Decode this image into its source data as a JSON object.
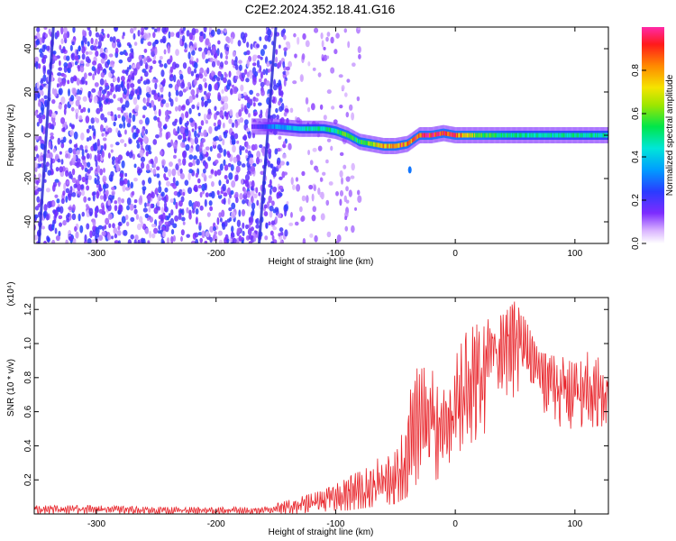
{
  "title": "C2E2.2024.352.18.41.G16",
  "colors": {
    "snr_line": "#e8242a",
    "spectrogram_background_points": "#7b2ff7",
    "frame": "#000000"
  },
  "chart_data": [
    {
      "type": "heatmap",
      "title": "C2E2.2024.352.18.41.G16",
      "xlabel": "Height of straight line (km)",
      "ylabel": "Frequency (Hz)",
      "xlim": [
        -352,
        128
      ],
      "ylim": [
        -50,
        50
      ],
      "x_ticks": [
        "-300",
        "-200",
        "-100",
        "0",
        "100"
      ],
      "x_tick_values": [
        -300,
        -200,
        -100,
        0,
        100
      ],
      "y_ticks": [
        "40",
        "20",
        "0",
        "-20",
        "-40"
      ],
      "y_tick_values": [
        40,
        20,
        0,
        -20,
        -40
      ],
      "colorbar": {
        "label": "Normalized spectral amplitude",
        "range": [
          0.0,
          1.0
        ],
        "ticks": [
          "0.0",
          "0.2",
          "0.4",
          "0.6",
          "0.8"
        ],
        "tick_values": [
          0.0,
          0.2,
          0.4,
          0.6,
          0.8
        ],
        "colormap": "hsv-rainbow (white/violet low to red/magenta high)"
      },
      "noise_region_x": [
        -352,
        -140
      ],
      "oblique_streaks": [
        {
          "x_at_bottom": -348,
          "x_at_top": -336
        },
        {
          "x_at_bottom": -164,
          "x_at_top": -150
        }
      ],
      "signal_ridge": {
        "x": [
          -170,
          -150,
          -130,
          -110,
          -100,
          -90,
          -80,
          -70,
          -60,
          -50,
          -40,
          -35,
          -30,
          -20,
          -10,
          0,
          20,
          50,
          80,
          100,
          128
        ],
        "frequency_hz": [
          4,
          4,
          3,
          3,
          2,
          0,
          -3,
          -4,
          -5,
          -5,
          -4,
          -2,
          0,
          0,
          1,
          0,
          0,
          0,
          0,
          0,
          0
        ],
        "amplitude": [
          0.15,
          0.35,
          0.45,
          0.5,
          0.55,
          0.6,
          0.55,
          0.7,
          0.8,
          0.9,
          0.85,
          0.9,
          0.95,
          1.0,
          0.95,
          0.95,
          0.6,
          0.5,
          0.5,
          0.5,
          0.5
        ]
      }
    },
    {
      "type": "line",
      "title": "",
      "xlabel": "Height of straight line (km)",
      "ylabel": "SNR (10 * v/v)",
      "y_multiplier": "(x10⁴)",
      "xlim": [
        -352,
        128
      ],
      "ylim": [
        0,
        1.27
      ],
      "x_ticks": [
        "-300",
        "-200",
        "-100",
        "0",
        "100"
      ],
      "x_tick_values": [
        -300,
        -200,
        -100,
        0,
        100
      ],
      "y_ticks": [
        "1.2",
        "1.0",
        "0.8",
        "0.6",
        "0.4",
        "0.2"
      ],
      "y_tick_values": [
        1.2,
        1.0,
        0.8,
        0.6,
        0.4,
        0.2
      ],
      "series": [
        {
          "color": "#e8242a",
          "x": [
            -352,
            -300,
            -250,
            -200,
            -170,
            -150,
            -130,
            -110,
            -100,
            -90,
            -80,
            -70,
            -60,
            -50,
            -45,
            -40,
            -35,
            -30,
            -25,
            -20,
            -15,
            -10,
            -5,
            0,
            10,
            20,
            30,
            40,
            50,
            60,
            70,
            80,
            90,
            100,
            110,
            120,
            128
          ],
          "values": [
            0.03,
            0.03,
            0.02,
            0.02,
            0.02,
            0.03,
            0.05,
            0.08,
            0.1,
            0.12,
            0.13,
            0.15,
            0.18,
            0.2,
            0.25,
            0.3,
            0.45,
            0.62,
            0.55,
            0.55,
            0.45,
            0.48,
            0.55,
            0.62,
            0.75,
            0.85,
            0.95,
            1.0,
            1.02,
            0.95,
            0.85,
            0.8,
            0.72,
            0.68,
            0.7,
            0.72,
            0.75
          ],
          "envelope_max": [
            0.05,
            0.05,
            0.04,
            0.04,
            0.04,
            0.06,
            0.1,
            0.14,
            0.18,
            0.22,
            0.25,
            0.3,
            0.35,
            0.4,
            0.5,
            0.6,
            0.86,
            0.85,
            0.86,
            0.85,
            0.8,
            0.72,
            0.8,
            0.92,
            1.08,
            1.12,
            1.15,
            1.17,
            1.25,
            1.12,
            0.95,
            0.93,
            0.92,
            0.88,
            0.95,
            0.96,
            0.8
          ],
          "envelope_min": [
            0.0,
            0.0,
            0.0,
            0.0,
            0.0,
            0.0,
            0.0,
            0.01,
            0.02,
            0.02,
            0.03,
            0.04,
            0.05,
            0.06,
            0.08,
            0.1,
            0.15,
            0.2,
            0.2,
            0.2,
            0.2,
            0.25,
            0.3,
            0.35,
            0.4,
            0.45,
            0.5,
            0.6,
            0.7,
            0.72,
            0.62,
            0.55,
            0.5,
            0.5,
            0.5,
            0.52,
            0.5
          ]
        }
      ]
    }
  ]
}
